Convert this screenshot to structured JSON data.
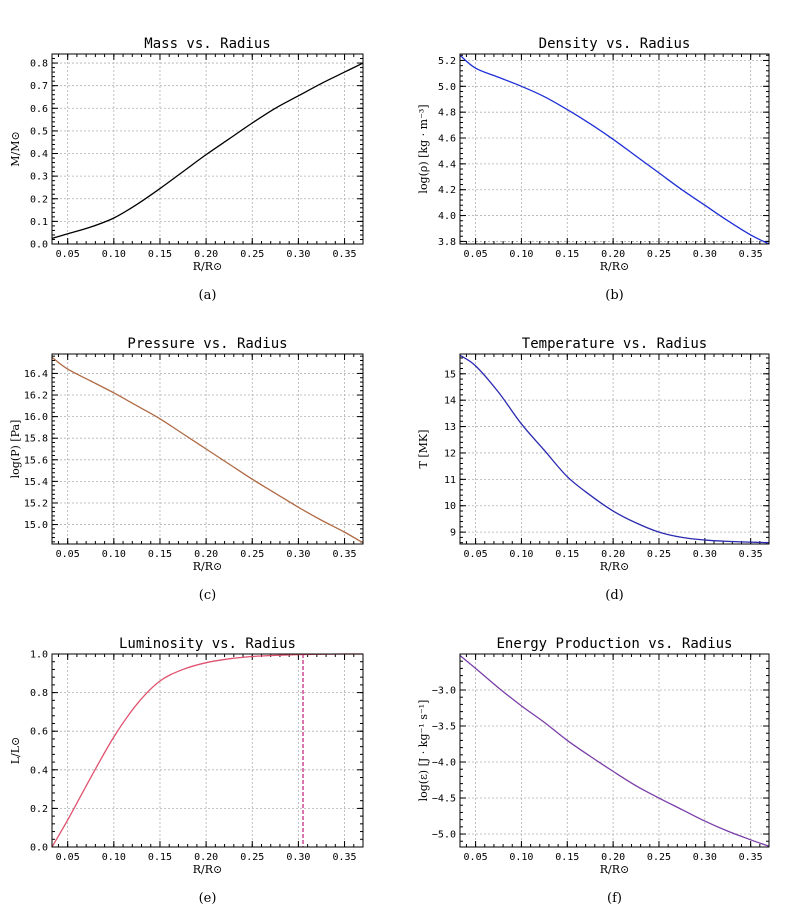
{
  "chart_data": [
    {
      "type": "line",
      "title": "Mass vs. Radius",
      "xlabel": "R/R⊙",
      "ylabel": "M/M⊙",
      "caption": "(a)",
      "xlim": [
        0.033,
        0.37
      ],
      "ylim": [
        0.0,
        0.84
      ],
      "xticks": [
        0.05,
        0.1,
        0.15,
        0.2,
        0.25,
        0.3,
        0.35
      ],
      "yticks": [
        0.0,
        0.1,
        0.2,
        0.3,
        0.4,
        0.5,
        0.6,
        0.7,
        0.8
      ],
      "xtick_labels": [
        "0.05",
        "0.10",
        "0.15",
        "0.20",
        "0.25",
        "0.30",
        "0.35"
      ],
      "ytick_labels": [
        "0.0",
        "0.1",
        "0.2",
        "0.3",
        "0.4",
        "0.5",
        "0.6",
        "0.7",
        "0.8"
      ],
      "grid": true,
      "color": "#000000",
      "x": [
        0.033,
        0.05,
        0.075,
        0.1,
        0.125,
        0.15,
        0.175,
        0.2,
        0.225,
        0.25,
        0.275,
        0.3,
        0.325,
        0.35,
        0.37
      ],
      "y": [
        0.025,
        0.045,
        0.075,
        0.115,
        0.175,
        0.245,
        0.32,
        0.395,
        0.465,
        0.535,
        0.6,
        0.655,
        0.71,
        0.76,
        0.8
      ]
    },
    {
      "type": "line",
      "title": "Density vs. Radius",
      "xlabel": "R/R⊙",
      "ylabel": "log(ρ) [kg · m⁻³]",
      "caption": "(b)",
      "xlim": [
        0.033,
        0.37
      ],
      "ylim": [
        3.78,
        5.25
      ],
      "xticks": [
        0.05,
        0.1,
        0.15,
        0.2,
        0.25,
        0.3,
        0.35
      ],
      "yticks": [
        3.8,
        4.0,
        4.2,
        4.4,
        4.6,
        4.8,
        5.0,
        5.2
      ],
      "xtick_labels": [
        "0.05",
        "0.10",
        "0.15",
        "0.20",
        "0.25",
        "0.30",
        "0.35"
      ],
      "ytick_labels": [
        "3.8",
        "4.0",
        "4.2",
        "4.4",
        "4.6",
        "4.8",
        "5.0",
        "5.2"
      ],
      "grid": true,
      "color": "#1f2fd6",
      "x": [
        0.033,
        0.05,
        0.075,
        0.1,
        0.125,
        0.15,
        0.175,
        0.2,
        0.225,
        0.25,
        0.275,
        0.3,
        0.325,
        0.35,
        0.37
      ],
      "y": [
        5.24,
        5.14,
        5.07,
        5.0,
        4.92,
        4.82,
        4.71,
        4.59,
        4.46,
        4.33,
        4.2,
        4.08,
        3.96,
        3.85,
        3.78
      ]
    },
    {
      "type": "line",
      "title": "Pressure vs. Radius",
      "xlabel": "R/R⊙",
      "ylabel": "log(P) [Pa]",
      "caption": "(c)",
      "xlim": [
        0.033,
        0.37
      ],
      "ylim": [
        14.82,
        16.58
      ],
      "xticks": [
        0.05,
        0.1,
        0.15,
        0.2,
        0.25,
        0.3,
        0.35
      ],
      "yticks": [
        15.0,
        15.2,
        15.4,
        15.6,
        15.8,
        16.0,
        16.2,
        16.4
      ],
      "xtick_labels": [
        "0.05",
        "0.10",
        "0.15",
        "0.20",
        "0.25",
        "0.30",
        "0.35"
      ],
      "ytick_labels": [
        "15.0",
        "15.2",
        "15.4",
        "15.6",
        "15.8",
        "16.0",
        "16.2",
        "16.4"
      ],
      "grid": true,
      "color": "#b06a45",
      "x": [
        0.033,
        0.05,
        0.075,
        0.1,
        0.125,
        0.15,
        0.175,
        0.2,
        0.225,
        0.25,
        0.275,
        0.3,
        0.325,
        0.35,
        0.37
      ],
      "y": [
        16.55,
        16.44,
        16.33,
        16.22,
        16.1,
        15.98,
        15.84,
        15.7,
        15.56,
        15.42,
        15.29,
        15.16,
        15.04,
        14.93,
        14.83
      ]
    },
    {
      "type": "line",
      "title": "Temperature vs. Radius",
      "xlabel": "R/R⊙",
      "ylabel": "T [MK]",
      "caption": "(d)",
      "xlim": [
        0.033,
        0.37
      ],
      "ylim": [
        8.55,
        15.75
      ],
      "xticks": [
        0.05,
        0.1,
        0.15,
        0.2,
        0.25,
        0.3,
        0.35
      ],
      "yticks": [
        9,
        10,
        11,
        12,
        13,
        14,
        15
      ],
      "xtick_labels": [
        "0.05",
        "0.10",
        "0.15",
        "0.20",
        "0.25",
        "0.30",
        "0.35"
      ],
      "ytick_labels": [
        "9",
        "10",
        "11",
        "12",
        "13",
        "14",
        "15"
      ],
      "grid": true,
      "color": "#2a2ab0",
      "x": [
        0.033,
        0.05,
        0.075,
        0.1,
        0.125,
        0.15,
        0.175,
        0.2,
        0.225,
        0.25,
        0.275,
        0.3,
        0.325,
        0.35,
        0.37
      ],
      "y": [
        15.7,
        15.3,
        14.3,
        13.1,
        12.1,
        11.1,
        10.4,
        9.8,
        9.35,
        9.0,
        8.8,
        8.7,
        8.65,
        8.62,
        8.6
      ]
    },
    {
      "type": "line",
      "title": "Luminosity vs. Radius",
      "xlabel": "R/R⊙",
      "ylabel": "L/L⊙",
      "caption": "(e)",
      "xlim": [
        0.033,
        0.37
      ],
      "ylim": [
        0.0,
        1.0
      ],
      "xticks": [
        0.05,
        0.1,
        0.15,
        0.2,
        0.25,
        0.3,
        0.35
      ],
      "yticks": [
        0.0,
        0.2,
        0.4,
        0.6,
        0.8,
        1.0
      ],
      "xtick_labels": [
        "0.05",
        "0.10",
        "0.15",
        "0.20",
        "0.25",
        "0.30",
        "0.35"
      ],
      "ytick_labels": [
        "0.0",
        "0.2",
        "0.4",
        "0.6",
        "0.8",
        "1.0"
      ],
      "grid": true,
      "color": "#e0526e",
      "vline": {
        "x": 0.305,
        "color": "#c0187a"
      },
      "x": [
        0.033,
        0.05,
        0.075,
        0.1,
        0.125,
        0.15,
        0.175,
        0.2,
        0.225,
        0.25,
        0.275,
        0.3,
        0.325,
        0.35,
        0.37
      ],
      "y": [
        0.0,
        0.14,
        0.36,
        0.57,
        0.74,
        0.86,
        0.92,
        0.955,
        0.975,
        0.987,
        0.993,
        0.997,
        0.999,
        1.0,
        1.0
      ]
    },
    {
      "type": "line",
      "title": "Energy Production vs. Radius",
      "xlabel": "R/R⊙",
      "ylabel": "log(ε) [J · kg⁻¹ s⁻¹]",
      "caption": "(f)",
      "xlim": [
        0.033,
        0.37
      ],
      "ylim": [
        -5.18,
        -2.5
      ],
      "xticks": [
        0.05,
        0.1,
        0.15,
        0.2,
        0.25,
        0.3,
        0.35
      ],
      "yticks": [
        -5.0,
        -4.5,
        -4.0,
        -3.5,
        -3.0
      ],
      "xtick_labels": [
        "0.05",
        "0.10",
        "0.15",
        "0.20",
        "0.25",
        "0.30",
        "0.35"
      ],
      "ytick_labels": [
        "−5.0",
        "−4.5",
        "−4.0",
        "−3.5",
        "−3.0"
      ],
      "grid": true,
      "color": "#7a3ea8",
      "x": [
        0.033,
        0.05,
        0.075,
        0.1,
        0.125,
        0.15,
        0.175,
        0.2,
        0.225,
        0.25,
        0.275,
        0.3,
        0.325,
        0.35,
        0.37
      ],
      "y": [
        -2.52,
        -2.7,
        -2.97,
        -3.22,
        -3.45,
        -3.7,
        -3.92,
        -4.13,
        -4.33,
        -4.5,
        -4.66,
        -4.82,
        -4.96,
        -5.08,
        -5.17
      ]
    }
  ]
}
